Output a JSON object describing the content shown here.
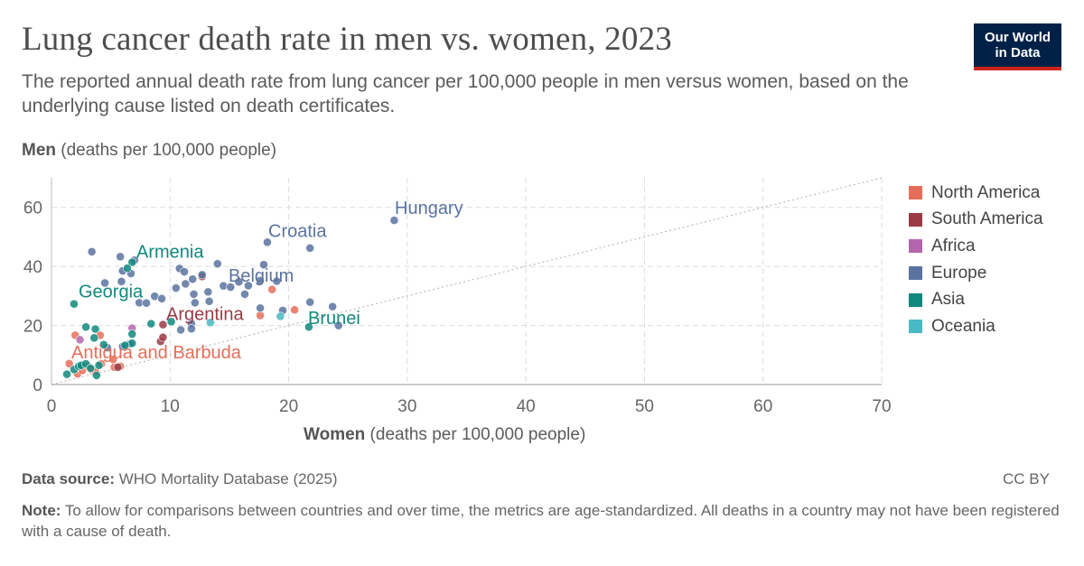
{
  "header": {
    "title": "Lung cancer death rate in men vs. women, 2023",
    "subtitle": "The reported annual death rate from lung cancer per 100,000 people in men versus women, based on the underlying cause listed on death certificates.",
    "logo_line1": "Our World",
    "logo_line2": "in Data"
  },
  "colors": {
    "North America": "#e56e5a",
    "South America": "#9a3b46",
    "Africa": "#b466ad",
    "Europe": "#5b73a0",
    "Asia": "#11887e",
    "Oceania": "#4ab9c3",
    "brand": "#002147",
    "brand_accent": "#ce261e"
  },
  "footer": {
    "source_label": "Data source:",
    "source_text": "WHO Mortality Database (2025)",
    "license": "CC BY",
    "note_label": "Note:",
    "note_text": "To allow for comparisons between countries and over time, the metrics are age-standardized. All deaths in a country may not have been registered with a cause of death."
  },
  "chart_data": {
    "type": "scatter",
    "title": "Lung cancer death rate in men vs. women, 2023",
    "xlabel_bold": "Women",
    "xlabel_rest": "(deaths per 100,000 people)",
    "ylabel_bold": "Men",
    "ylabel_rest": "(deaths per 100,000 people)",
    "xlim": [
      0,
      70
    ],
    "ylim": [
      0,
      70
    ],
    "xticks": [
      0,
      10,
      20,
      30,
      40,
      50,
      60,
      70
    ],
    "yticks": [
      0,
      20,
      40,
      60
    ],
    "grid": true,
    "diagonal_line": "y = x",
    "legend_position": "right",
    "legend": [
      "North America",
      "South America",
      "Africa",
      "Europe",
      "Asia",
      "Oceania"
    ],
    "labeled_points": [
      {
        "label": "Hungary",
        "region": "Europe",
        "x": 28.9,
        "y": 55.6
      },
      {
        "label": "Croatia",
        "region": "Europe",
        "x": 18.2,
        "y": 48.2
      },
      {
        "label": "Armenia",
        "region": "Asia",
        "x": 6.8,
        "y": 41.4
      },
      {
        "label": "Belgium",
        "region": "Europe",
        "x": 15.1,
        "y": 33.0
      },
      {
        "label": "Georgia",
        "region": "Asia",
        "x": 1.9,
        "y": 27.3
      },
      {
        "label": "Argentina",
        "region": "South America",
        "x": 9.4,
        "y": 20.3
      },
      {
        "label": "Brunei",
        "region": "Asia",
        "x": 21.7,
        "y": 19.5
      },
      {
        "label": "Antigua and Barbuda",
        "region": "North America",
        "x": 1.5,
        "y": 7.1
      }
    ],
    "series": [
      {
        "name": "North America",
        "points": [
          [
            1.5,
            7.1
          ],
          [
            2.0,
            16.7
          ],
          [
            2.2,
            3.6
          ],
          [
            2.6,
            4.8
          ],
          [
            3.1,
            6.2
          ],
          [
            3.4,
            5.0
          ],
          [
            3.7,
            4.4
          ],
          [
            4.2,
            7.0
          ],
          [
            5.3,
            5.9
          ],
          [
            5.8,
            6.2
          ],
          [
            4.1,
            16.7
          ],
          [
            18.6,
            32.2
          ],
          [
            20.5,
            25.3
          ],
          [
            17.6,
            23.4
          ],
          [
            5.2,
            8.5
          ]
        ]
      },
      {
        "name": "South America",
        "points": [
          [
            9.4,
            20.3
          ],
          [
            9.2,
            14.6
          ],
          [
            9.4,
            16.0
          ],
          [
            12.7,
            36.6
          ],
          [
            5.6,
            5.9
          ]
        ]
      },
      {
        "name": "Africa",
        "points": [
          [
            6.8,
            19.1
          ],
          [
            2.4,
            15.2
          ]
        ]
      },
      {
        "name": "Europe",
        "points": [
          [
            28.9,
            55.6
          ],
          [
            18.2,
            48.2
          ],
          [
            21.8,
            46.2
          ],
          [
            3.4,
            45.0
          ],
          [
            5.8,
            43.3
          ],
          [
            7.0,
            42.1
          ],
          [
            14.0,
            40.9
          ],
          [
            10.8,
            39.3
          ],
          [
            11.2,
            38.2
          ],
          [
            17.9,
            40.6
          ],
          [
            6.0,
            38.5
          ],
          [
            6.7,
            37.6
          ],
          [
            11.9,
            35.7
          ],
          [
            12.7,
            37.2
          ],
          [
            15.8,
            34.8
          ],
          [
            17.6,
            35.2
          ],
          [
            19.0,
            35.0
          ],
          [
            11.3,
            34.1
          ],
          [
            14.5,
            33.4
          ],
          [
            15.1,
            33.0
          ],
          [
            16.6,
            33.5
          ],
          [
            10.5,
            32.7
          ],
          [
            13.2,
            31.4
          ],
          [
            12.0,
            30.6
          ],
          [
            16.3,
            30.6
          ],
          [
            8.7,
            29.9
          ],
          [
            9.3,
            29.1
          ],
          [
            7.4,
            27.7
          ],
          [
            8.0,
            27.6
          ],
          [
            13.3,
            28.2
          ],
          [
            21.8,
            27.9
          ],
          [
            23.7,
            26.4
          ],
          [
            17.6,
            25.9
          ],
          [
            19.5,
            25.1
          ],
          [
            12.1,
            27.7
          ],
          [
            4.5,
            34.4
          ],
          [
            5.9,
            34.9
          ],
          [
            11.8,
            20.6
          ],
          [
            10.9,
            18.5
          ],
          [
            24.2,
            20.0
          ],
          [
            11.8,
            18.9
          ],
          [
            6.6,
            13.8
          ],
          [
            4.7,
            12.5
          ],
          [
            6.0,
            12.9
          ]
        ]
      },
      {
        "name": "Asia",
        "points": [
          [
            6.8,
            41.4
          ],
          [
            6.4,
            39.4
          ],
          [
            1.9,
            27.3
          ],
          [
            2.9,
            19.5
          ],
          [
            3.7,
            18.8
          ],
          [
            8.4,
            20.6
          ],
          [
            10.1,
            21.3
          ],
          [
            21.7,
            19.5
          ],
          [
            3.6,
            15.8
          ],
          [
            6.8,
            17.1
          ],
          [
            6.8,
            14.0
          ],
          [
            6.2,
            13.3
          ],
          [
            4.4,
            13.5
          ],
          [
            1.3,
            3.5
          ],
          [
            1.9,
            5.1
          ],
          [
            2.3,
            6.2
          ],
          [
            2.5,
            6.5
          ],
          [
            2.9,
            7.0
          ],
          [
            3.3,
            5.5
          ],
          [
            3.8,
            3.1
          ],
          [
            4.0,
            6.5
          ]
        ]
      },
      {
        "name": "Oceania",
        "points": [
          [
            13.4,
            21.0
          ],
          [
            19.3,
            23.1
          ]
        ]
      }
    ]
  }
}
